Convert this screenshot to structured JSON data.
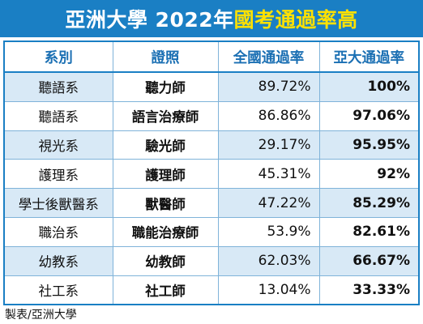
{
  "banner": {
    "title_white": "亞洲大學 2022年",
    "title_yellow": "國考通過率高"
  },
  "table": {
    "headers": [
      "系別",
      "證照",
      "全國通過率",
      "亞大通過率"
    ],
    "rows": [
      {
        "dept": "聽語系",
        "license": "聽力師",
        "national": "89.72%",
        "asia": "100%"
      },
      {
        "dept": "聽語系",
        "license": "語言治療師",
        "national": "86.86%",
        "asia": "97.06%"
      },
      {
        "dept": "視光系",
        "license": "驗光師",
        "national": "29.17%",
        "asia": "95.95%"
      },
      {
        "dept": "護理系",
        "license": "護理師",
        "national": "45.31%",
        "asia": "92%"
      },
      {
        "dept": "學士後獸醫系",
        "license": "獸醫師",
        "national": "47.22%",
        "asia": "85.29%"
      },
      {
        "dept": "職治系",
        "license": "職能治療師",
        "national": "53.9%",
        "asia": "82.61%"
      },
      {
        "dept": "幼教系",
        "license": "幼教師",
        "national": "62.03%",
        "asia": "66.67%"
      },
      {
        "dept": "社工系",
        "license": "社工師",
        "national": "13.04%",
        "asia": "33.33%"
      }
    ]
  },
  "caption": "製表/亞洲大學",
  "colors": {
    "banner": "#1a7fc4",
    "highlight": "#ffe100",
    "row_alt": "#d8e9f6"
  }
}
